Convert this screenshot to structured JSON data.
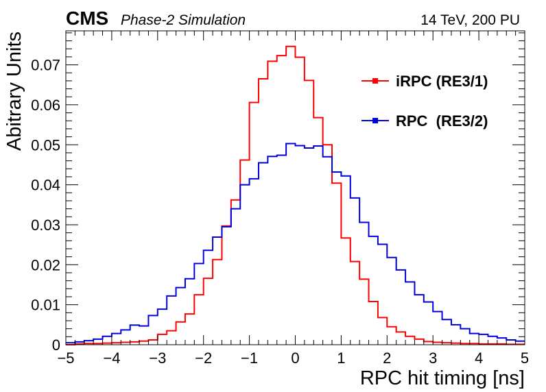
{
  "header": {
    "experiment": "CMS",
    "subtitle": "Phase-2 Simulation",
    "energy": "14 TeV, 200 PU"
  },
  "chart_data": {
    "type": "line",
    "histogram": true,
    "xlabel": "RPC hit timing [ns]",
    "ylabel": "Abitrary Units",
    "xlim": [
      -5,
      5
    ],
    "ylim": [
      0,
      0.0785
    ],
    "xticks": [
      "-5",
      "-4",
      "-3",
      "-2",
      "-1",
      "0",
      "1",
      "2",
      "3",
      "4",
      "5"
    ],
    "yticks": [
      "0",
      "0.01",
      "0.02",
      "0.03",
      "0.04",
      "0.05",
      "0.06",
      "0.07"
    ],
    "grid": false,
    "legend_position": "top-right",
    "bin_edges_start": -5.0,
    "bin_width": 0.2,
    "series": [
      {
        "name": "iRPC (RE3/1)",
        "color": "#ff0000",
        "values": [
          0.0,
          0.0002,
          0.0003,
          0.0003,
          0.0004,
          0.0005,
          0.0006,
          0.0007,
          0.0009,
          0.0012,
          0.0026,
          0.0035,
          0.0057,
          0.0077,
          0.0125,
          0.0166,
          0.0213,
          0.0297,
          0.0362,
          0.0462,
          0.0606,
          0.0665,
          0.0709,
          0.0723,
          0.0746,
          0.0719,
          0.0661,
          0.0568,
          0.05,
          0.0404,
          0.0267,
          0.0208,
          0.0164,
          0.0108,
          0.0068,
          0.0045,
          0.0032,
          0.0021,
          0.0014,
          0.0008,
          0.0006,
          0.0005,
          0.0004,
          0.0003,
          0.0003,
          0.0002,
          0.0002,
          0.0002,
          0.0001,
          0.0001
        ]
      },
      {
        "name": "RPC  (RE3/2)",
        "color": "#0000dd",
        "values": [
          0.0005,
          0.0007,
          0.001,
          0.0014,
          0.0021,
          0.0028,
          0.0037,
          0.0049,
          0.0047,
          0.0073,
          0.0089,
          0.0122,
          0.0143,
          0.0165,
          0.0203,
          0.0236,
          0.0269,
          0.0295,
          0.034,
          0.04,
          0.0415,
          0.0455,
          0.0471,
          0.0474,
          0.0503,
          0.0498,
          0.0492,
          0.0497,
          0.047,
          0.0432,
          0.0422,
          0.0367,
          0.0306,
          0.0271,
          0.0251,
          0.0218,
          0.0187,
          0.0157,
          0.0125,
          0.0107,
          0.0083,
          0.0063,
          0.005,
          0.004,
          0.0028,
          0.0026,
          0.0021,
          0.0017,
          0.0012,
          0.0009
        ]
      }
    ]
  }
}
